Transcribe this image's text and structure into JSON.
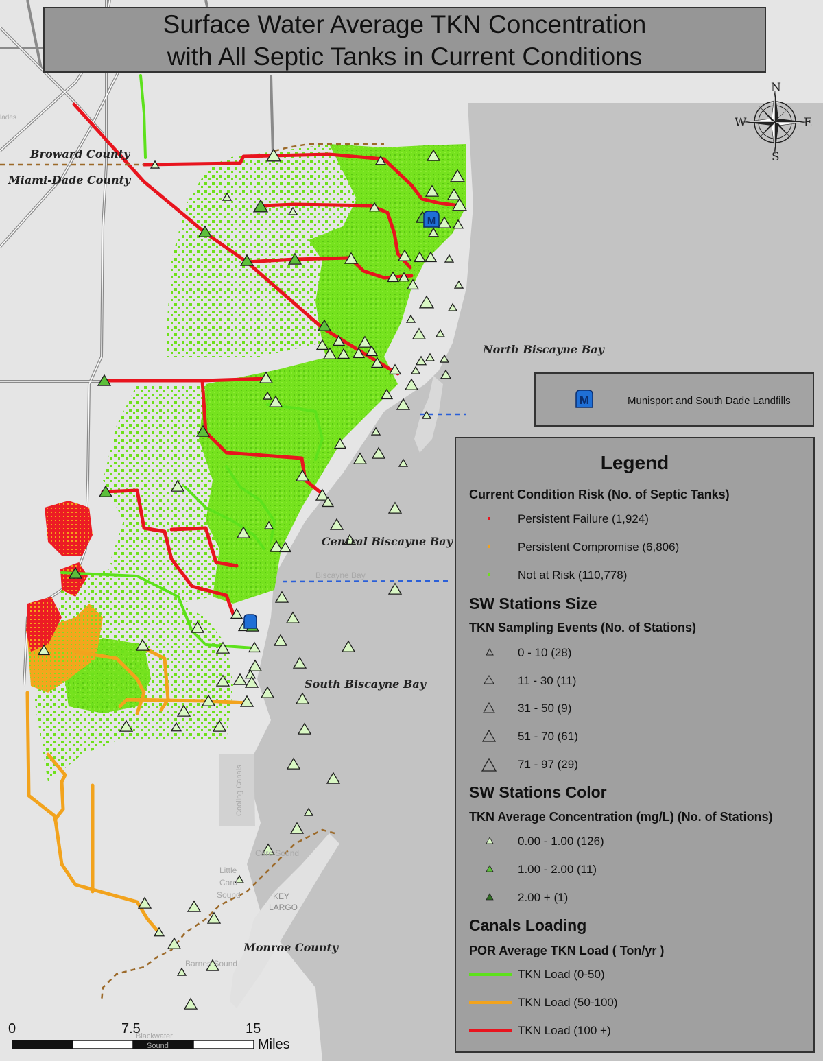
{
  "title": {
    "line1": "Surface Water Average TKN  Concentration",
    "line2": "with All Septic Tanks in Current Conditions"
  },
  "place_labels": {
    "broward": "Broward County",
    "miami_dade": "Miami-Dade County",
    "north_bay": "North Biscayne Bay",
    "central_bay": "Central Biscayne Bay",
    "south_bay": "South Biscayne Bay",
    "monroe": "Monroe County"
  },
  "basemap_labels": {
    "glades": "lades",
    "biscayne_bay": "Biscayne Bay",
    "cooling_canals": "Cooling Canals",
    "card_sound": "Card Sound",
    "little_card_sound_1": "Little",
    "little_card_sound_2": "Card",
    "little_card_sound_3": "Sound",
    "key_largo_1": "KEY",
    "key_largo_2": "LARGO",
    "barnes_sound": "Barnes Sound",
    "blackwater_sound_1": "Blackwater",
    "blackwater_sound_2": "Sound"
  },
  "compass": {
    "n": "N",
    "s": "S",
    "e": "E",
    "w": "W"
  },
  "landfill": {
    "label": "Munisport and South Dade Landfills",
    "icon": "landfill-marker-icon",
    "icon_letter": "M",
    "color": "#1f6fd6"
  },
  "legend": {
    "title": "Legend",
    "risk_heading": "Current Condition Risk (No. of Septic Tanks)",
    "risk_items": [
      {
        "label": "Persistent Failure (1,924)",
        "color": "#e8141e"
      },
      {
        "label": "Persistent Compromise (6,806)",
        "color": "#f5a21b"
      },
      {
        "label": "Not at Risk (110,778)",
        "color": "#6fe01c"
      }
    ],
    "size_heading": "SW Stations Size",
    "size_subheading": "TKN Sampling Events (No. of Stations)",
    "size_items": [
      {
        "label": "0 - 10 (28)"
      },
      {
        "label": "11 - 30 (11)"
      },
      {
        "label": "31 - 50 (9)"
      },
      {
        "label": "51 - 70 (61)"
      },
      {
        "label": "71 - 97 (29)"
      }
    ],
    "color_heading": "SW Stations Color",
    "color_subheading": "TKN Average Concentration (mg/L) (No. of Stations)",
    "color_items": [
      {
        "label": "0.00 - 1.00 (126)",
        "color": "#d9f7c4"
      },
      {
        "label": "1.00 - 2.00 (11)",
        "color": "#5cbf3a"
      },
      {
        "label": "2.00 + (1)",
        "color": "#2f6e22"
      }
    ],
    "canal_heading": "Canals Loading",
    "canal_subheading": "POR  Average TKN Load ( Ton/yr )",
    "canal_items": [
      {
        "label": "TKN Load (0-50)",
        "color": "#5de11c"
      },
      {
        "label": "TKN Load (50-100)",
        "color": "#f2a31d"
      },
      {
        "label": "TKN Load (100 +)",
        "color": "#e8141e"
      }
    ]
  },
  "scale_bar": {
    "labels": [
      "0",
      "7.5",
      "15"
    ],
    "unit": "Miles"
  },
  "colors": {
    "land": "#e4e4e4",
    "water": "#c2c2c2",
    "county_line": "#9c6a2a",
    "bay_division": "#2a5fd8"
  }
}
